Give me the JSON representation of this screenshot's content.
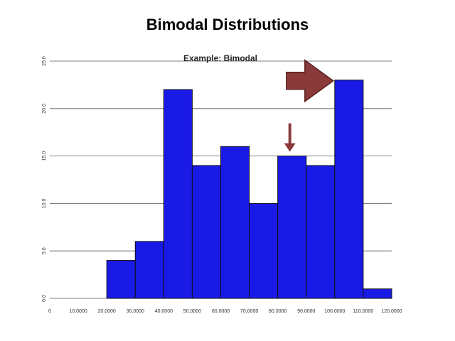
{
  "slide": {
    "title": "Bimodal Distributions"
  },
  "chart_data": {
    "type": "bar",
    "title": "Example: Bimodal",
    "x_ticks": [
      "0",
      "10.0000",
      "20.0000",
      "30.0000",
      "40.0000",
      "50.0000",
      "60.0000",
      "70.0000",
      "80.0000",
      "90.0000",
      "100.0000",
      "110.0000",
      "120.0000"
    ],
    "y_ticks": [
      "0.0",
      "5.0",
      "10.0",
      "15.0",
      "20.0",
      "25.0"
    ],
    "xlim": [
      0,
      120
    ],
    "ylim": [
      0,
      25
    ],
    "bins": [
      {
        "start": 20,
        "end": 30,
        "value": 4
      },
      {
        "start": 30,
        "end": 40,
        "value": 6
      },
      {
        "start": 40,
        "end": 50,
        "value": 22
      },
      {
        "start": 50,
        "end": 60,
        "value": 14
      },
      {
        "start": 60,
        "end": 70,
        "value": 16
      },
      {
        "start": 70,
        "end": 80,
        "value": 10
      },
      {
        "start": 80,
        "end": 90,
        "value": 15
      },
      {
        "start": 90,
        "end": 100,
        "value": 14
      },
      {
        "start": 100,
        "end": 110,
        "value": 23
      },
      {
        "start": 110,
        "end": 120,
        "value": 1
      }
    ],
    "bar_color": "#1a1ae6",
    "grid": true,
    "annotations": [
      {
        "type": "large-arrow",
        "direction": "right",
        "color": "#8b3a3a",
        "points_to_bin": 8
      },
      {
        "type": "small-arrow",
        "direction": "down",
        "color": "#8b3a3a",
        "points_to_bin": 6
      }
    ]
  }
}
